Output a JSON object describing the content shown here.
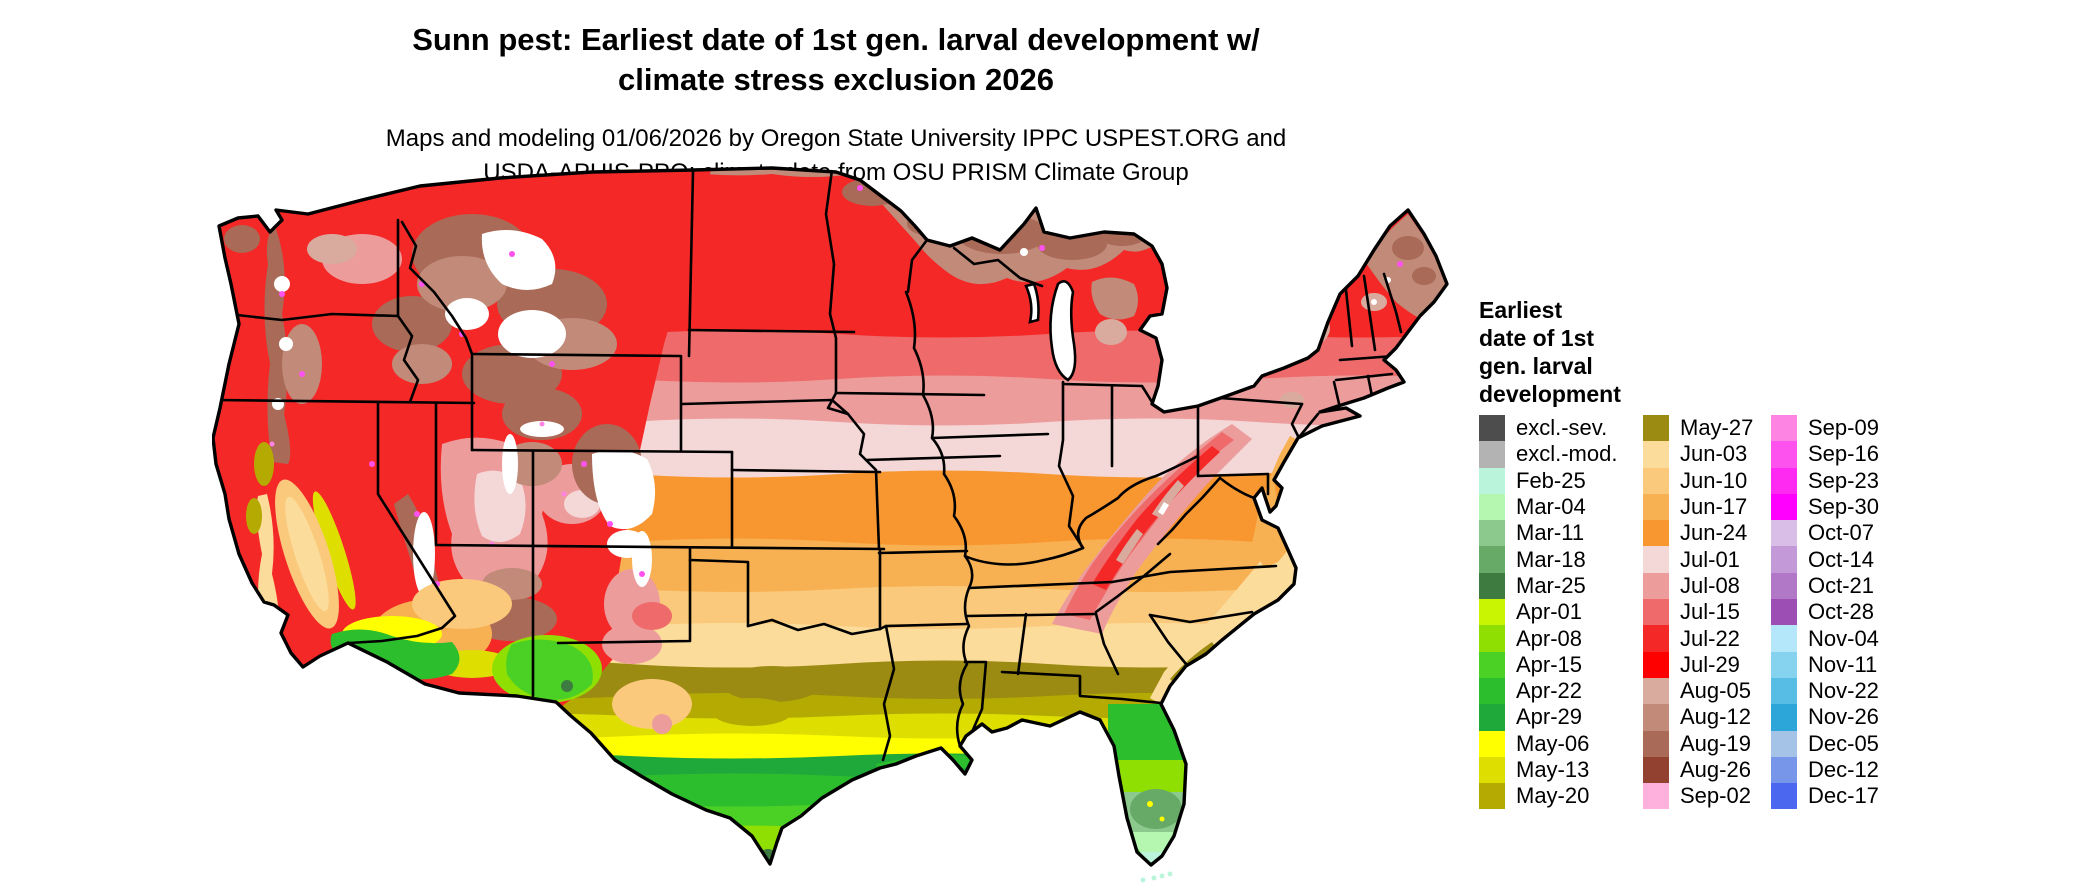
{
  "title": {
    "line1": "Sunn pest: Earliest date of 1st gen. larval development w/",
    "line2": "climate stress exclusion 2026"
  },
  "subtitle": {
    "line1": "Maps and modeling 01/06/2026 by Oregon State University IPPC USPEST.ORG and",
    "line2": "USDA-APHIS-PPQ; climate data from OSU PRISM Climate Group"
  },
  "legend": {
    "title_lines": [
      "Earliest",
      "date of 1st",
      "gen. larval",
      "development"
    ],
    "columns": [
      {
        "entries": [
          {
            "label": "excl.-sev.",
            "color": "#4d4d4d"
          },
          {
            "label": "excl.-mod.",
            "color": "#b3b3b3"
          },
          {
            "label": "Feb-25",
            "color": "#baf5db"
          },
          {
            "label": "Mar-04",
            "color": "#b5f7b1"
          },
          {
            "label": "Mar-11",
            "color": "#8cc98c"
          },
          {
            "label": "Mar-18",
            "color": "#67a967"
          },
          {
            "label": "Mar-25",
            "color": "#3d7b40"
          },
          {
            "label": "Apr-01",
            "color": "#c9f402"
          },
          {
            "label": "Apr-08",
            "color": "#8fe002"
          },
          {
            "label": "Apr-15",
            "color": "#4bd026"
          },
          {
            "label": "Apr-22",
            "color": "#2dbe2d"
          },
          {
            "label": "Apr-29",
            "color": "#1fa93a"
          },
          {
            "label": "May-06",
            "color": "#ffff00"
          },
          {
            "label": "May-13",
            "color": "#dedf00"
          },
          {
            "label": "May-20",
            "color": "#b5aa01"
          }
        ]
      },
      {
        "entries": [
          {
            "label": "May-27",
            "color": "#9b8b12"
          },
          {
            "label": "Jun-03",
            "color": "#fcdc9b"
          },
          {
            "label": "Jun-10",
            "color": "#fac97b"
          },
          {
            "label": "Jun-17",
            "color": "#f8b152"
          },
          {
            "label": "Jun-24",
            "color": "#f89730"
          },
          {
            "label": "Jul-01",
            "color": "#f4d8d8"
          },
          {
            "label": "Jul-08",
            "color": "#ed9c9c"
          },
          {
            "label": "Jul-15",
            "color": "#ef6a6a"
          },
          {
            "label": "Jul-22",
            "color": "#f52828"
          },
          {
            "label": "Jul-29",
            "color": "#ff0000"
          },
          {
            "label": "Aug-05",
            "color": "#d9ab9f"
          },
          {
            "label": "Aug-12",
            "color": "#c18a79"
          },
          {
            "label": "Aug-19",
            "color": "#a96a57"
          },
          {
            "label": "Aug-26",
            "color": "#92402f"
          },
          {
            "label": "Sep-02",
            "color": "#ffb1de"
          }
        ]
      },
      {
        "entries": [
          {
            "label": "Sep-09",
            "color": "#fe84e4"
          },
          {
            "label": "Sep-16",
            "color": "#fe52ee"
          },
          {
            "label": "Sep-23",
            "color": "#fe2af2"
          },
          {
            "label": "Sep-30",
            "color": "#ff00ff"
          },
          {
            "label": "Oct-07",
            "color": "#d9bfe7"
          },
          {
            "label": "Oct-14",
            "color": "#c499d7"
          },
          {
            "label": "Oct-21",
            "color": "#b078c7"
          },
          {
            "label": "Oct-28",
            "color": "#9d4eb5"
          },
          {
            "label": "Nov-04",
            "color": "#b5e7fb"
          },
          {
            "label": "Nov-11",
            "color": "#86d3f0"
          },
          {
            "label": "Nov-22",
            "color": "#57bde5"
          },
          {
            "label": "Nov-26",
            "color": "#2ca6d9"
          },
          {
            "label": "Dec-05",
            "color": "#a4c3e7"
          },
          {
            "label": "Dec-12",
            "color": "#7896e9"
          },
          {
            "label": "Dec-17",
            "color": "#4b67f0"
          }
        ]
      }
    ]
  },
  "map_colors": {
    "excl_sev": "#4d4d4d",
    "excl_mod": "#b3b3b3",
    "feb_25": "#baf5db",
    "mar_04": "#b5f7b1",
    "mar_11": "#8cc98c",
    "mar_18": "#67a967",
    "mar_25": "#3d7b40",
    "apr_01": "#c9f402",
    "apr_08": "#8fe002",
    "apr_15": "#4bd026",
    "apr_22": "#2dbe2d",
    "apr_29": "#1fa93a",
    "may_06": "#ffff00",
    "may_13": "#dedf00",
    "may_20": "#b5aa01",
    "may_27": "#9b8b12",
    "jun_03": "#fcdc9b",
    "jun_10": "#fac97b",
    "jun_17": "#f8b152",
    "jun_24": "#f89730",
    "jul_01": "#f4d8d8",
    "jul_08": "#ed9c9c",
    "jul_15": "#ef6a6a",
    "jul_22": "#f52828",
    "jul_29": "#ff0000",
    "aug_05": "#d9ab9f",
    "aug_12": "#c18a79",
    "aug_19": "#a96a57",
    "aug_26": "#92402f",
    "sep_02": "#ffb1de",
    "sep_09": "#fe84e4",
    "sep_16": "#fe52ee",
    "sep_30": "#ff00ff",
    "white": "#ffffff",
    "border": "#000000"
  }
}
